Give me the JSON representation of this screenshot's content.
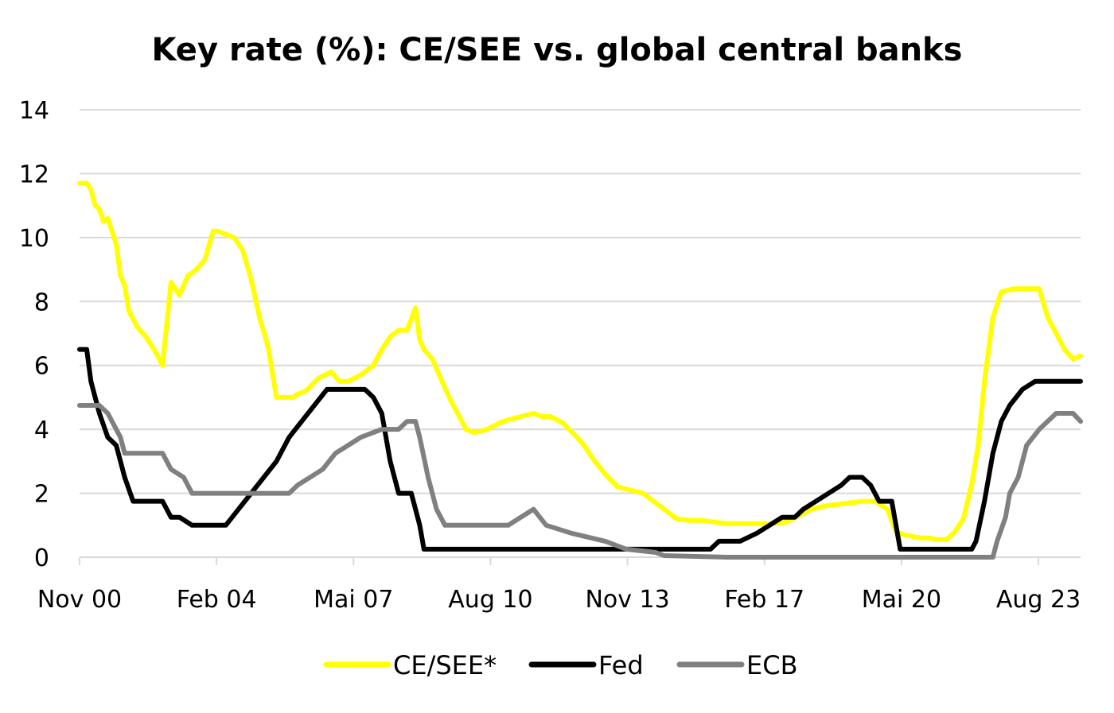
{
  "chart_data": {
    "type": "line",
    "title": "Key rate (%): CE/SEE vs. global central banks",
    "xlabel": "",
    "ylabel": "",
    "ylim": [
      0,
      14
    ],
    "yticks": [
      0,
      2,
      4,
      6,
      8,
      10,
      12,
      14
    ],
    "grid": true,
    "legend_position": "bottom",
    "x_tick_labels": [
      "Nov 00",
      "Feb 04",
      "Mai 07",
      "Aug 10",
      "Nov 13",
      "Feb 17",
      "Mai 20",
      "Aug 23"
    ],
    "x_tick_years": [
      2000.83,
      2004.08,
      2007.33,
      2010.58,
      2013.83,
      2017.08,
      2020.33,
      2023.58
    ],
    "xlim": [
      2000.83,
      2024.58
    ],
    "series": [
      {
        "name": "CE/SEE*",
        "color": "#ffff00",
        "x": [
          2000.83,
          2001.0,
          2001.1,
          2001.2,
          2001.3,
          2001.4,
          2001.5,
          2001.6,
          2001.7,
          2001.8,
          2001.9,
          2002.0,
          2002.2,
          2002.4,
          2002.6,
          2002.8,
          2003.0,
          2003.2,
          2003.4,
          2003.6,
          2003.8,
          2004.0,
          2004.1,
          2004.3,
          2004.5,
          2004.7,
          2004.9,
          2005.1,
          2005.3,
          2005.5,
          2005.7,
          2005.9,
          2006.0,
          2006.2,
          2006.5,
          2006.8,
          2007.0,
          2007.2,
          2007.5,
          2007.8,
          2008.0,
          2008.2,
          2008.4,
          2008.6,
          2008.8,
          2008.9,
          2009.0,
          2009.2,
          2009.4,
          2009.6,
          2009.8,
          2010.0,
          2010.2,
          2010.5,
          2010.8,
          2011.0,
          2011.3,
          2011.6,
          2011.8,
          2012.0,
          2012.3,
          2012.6,
          2012.8,
          2013.0,
          2013.3,
          2013.6,
          2013.9,
          2014.2,
          2014.5,
          2014.8,
          2015.0,
          2015.3,
          2015.6,
          2015.9,
          2016.2,
          2016.5,
          2016.8,
          2017.0,
          2017.3,
          2017.6,
          2017.9,
          2018.2,
          2018.5,
          2018.8,
          2019.1,
          2019.4,
          2019.7,
          2020.0,
          2020.2,
          2020.4,
          2020.6,
          2020.8,
          2021.0,
          2021.2,
          2021.4,
          2021.6,
          2021.8,
          2022.0,
          2022.15,
          2022.3,
          2022.5,
          2022.7,
          2023.0,
          2023.3,
          2023.6,
          2023.8,
          2024.0,
          2024.2,
          2024.4,
          2024.58
        ],
        "values": [
          11.7,
          11.7,
          11.5,
          11.0,
          10.9,
          10.5,
          10.6,
          10.2,
          9.8,
          8.8,
          8.5,
          7.7,
          7.2,
          6.9,
          6.5,
          6.0,
          8.6,
          8.2,
          8.8,
          9.0,
          9.3,
          10.2,
          10.2,
          10.1,
          10.0,
          9.6,
          8.7,
          7.5,
          6.6,
          5.0,
          5.0,
          5.0,
          5.1,
          5.2,
          5.6,
          5.8,
          5.5,
          5.5,
          5.7,
          6.0,
          6.5,
          6.9,
          7.1,
          7.1,
          7.8,
          6.8,
          6.5,
          6.2,
          5.6,
          5.0,
          4.5,
          4.0,
          3.9,
          4.0,
          4.2,
          4.3,
          4.4,
          4.5,
          4.4,
          4.4,
          4.2,
          3.8,
          3.5,
          3.1,
          2.6,
          2.2,
          2.1,
          2.0,
          1.7,
          1.4,
          1.2,
          1.15,
          1.15,
          1.1,
          1.05,
          1.05,
          1.05,
          1.05,
          1.05,
          1.1,
          1.3,
          1.5,
          1.6,
          1.65,
          1.7,
          1.75,
          1.75,
          1.5,
          0.8,
          0.7,
          0.65,
          0.6,
          0.6,
          0.55,
          0.55,
          0.8,
          1.2,
          2.3,
          3.5,
          5.5,
          7.5,
          8.3,
          8.4,
          8.4,
          8.4,
          7.5,
          7.0,
          6.5,
          6.2,
          6.3
        ]
      },
      {
        "name": "Fed",
        "color": "#000000",
        "x": [
          2000.83,
          2001.0,
          2001.1,
          2001.3,
          2001.5,
          2001.7,
          2001.9,
          2002.1,
          2002.3,
          2002.8,
          2003.0,
          2003.2,
          2003.5,
          2003.8,
          2004.0,
          2004.3,
          2004.6,
          2004.9,
          2005.2,
          2005.5,
          2005.8,
          2006.1,
          2006.4,
          2006.7,
          2007.0,
          2007.3,
          2007.6,
          2007.8,
          2008.0,
          2008.2,
          2008.4,
          2008.7,
          2008.9,
          2009.0,
          2010.0,
          2012.0,
          2014.0,
          2015.8,
          2016.0,
          2016.5,
          2016.9,
          2017.2,
          2017.5,
          2017.8,
          2018.0,
          2018.3,
          2018.6,
          2018.9,
          2019.1,
          2019.4,
          2019.6,
          2019.8,
          2020.1,
          2020.2,
          2020.3,
          2021.0,
          2022.0,
          2022.1,
          2022.3,
          2022.5,
          2022.7,
          2022.9,
          2023.2,
          2023.5,
          2023.8,
          2024.0,
          2024.58
        ],
        "values": [
          6.5,
          6.5,
          5.5,
          4.5,
          3.75,
          3.5,
          2.5,
          1.75,
          1.75,
          1.75,
          1.25,
          1.25,
          1.0,
          1.0,
          1.0,
          1.0,
          1.5,
          2.0,
          2.5,
          3.0,
          3.75,
          4.25,
          4.75,
          5.25,
          5.25,
          5.25,
          5.25,
          5.0,
          4.5,
          3.0,
          2.0,
          2.0,
          1.0,
          0.25,
          0.25,
          0.25,
          0.25,
          0.25,
          0.5,
          0.5,
          0.75,
          1.0,
          1.25,
          1.25,
          1.5,
          1.75,
          2.0,
          2.25,
          2.5,
          2.5,
          2.25,
          1.75,
          1.75,
          1.0,
          0.25,
          0.25,
          0.25,
          0.5,
          1.75,
          3.25,
          4.25,
          4.75,
          5.25,
          5.5,
          5.5,
          5.5,
          5.5
        ]
      },
      {
        "name": "ECB",
        "color": "#808080",
        "x": [
          2000.83,
          2001.3,
          2001.5,
          2001.7,
          2001.8,
          2001.9,
          2002.8,
          2003.0,
          2003.3,
          2003.5,
          2005.8,
          2006.0,
          2006.3,
          2006.6,
          2006.9,
          2007.2,
          2007.5,
          2008.0,
          2008.4,
          2008.6,
          2008.8,
          2008.9,
          2009.1,
          2009.3,
          2009.5,
          2011.0,
          2011.3,
          2011.6,
          2011.9,
          2012.5,
          2013.3,
          2013.8,
          2014.5,
          2014.7,
          2016.2,
          2022.5,
          2022.6,
          2022.8,
          2022.9,
          2023.1,
          2023.3,
          2023.6,
          2024.0,
          2024.4,
          2024.58
        ],
        "values": [
          4.75,
          4.75,
          4.5,
          4.0,
          3.75,
          3.25,
          3.25,
          2.75,
          2.5,
          2.0,
          2.0,
          2.25,
          2.5,
          2.75,
          3.25,
          3.5,
          3.75,
          4.0,
          4.0,
          4.25,
          4.25,
          3.75,
          2.5,
          1.5,
          1.0,
          1.0,
          1.25,
          1.5,
          1.0,
          0.75,
          0.5,
          0.25,
          0.15,
          0.05,
          0.0,
          0.0,
          0.5,
          1.25,
          2.0,
          2.5,
          3.5,
          4.0,
          4.5,
          4.5,
          4.25
        ]
      }
    ]
  }
}
